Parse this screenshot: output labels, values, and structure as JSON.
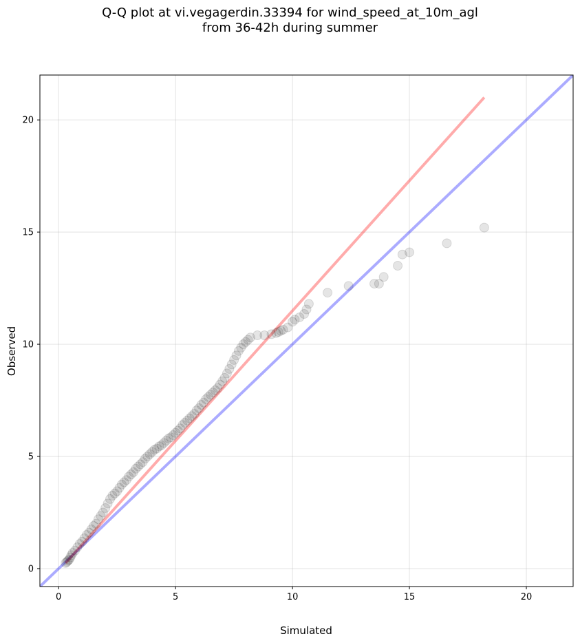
{
  "chart_data": {
    "type": "scatter",
    "title": "Q-Q plot at vi.vegagerdin.33394 for wind_speed_at_10m_agl",
    "subtitle": "from 36-42h during summer",
    "xlabel": "Simulated",
    "ylabel": "Observed",
    "xlim": [
      -0.8,
      22
    ],
    "ylim": [
      -0.8,
      22
    ],
    "xticks": [
      0,
      5,
      10,
      15,
      20
    ],
    "yticks": [
      0,
      5,
      10,
      15,
      20
    ],
    "grid": true,
    "colors": {
      "points": "#000000",
      "fit_line": "#ff0000",
      "identity_line": "#0000ff"
    },
    "fit_line": {
      "x": [
        0.3,
        18.2
      ],
      "y": [
        0.25,
        21.0
      ]
    },
    "identity_line": {
      "x": [
        -0.8,
        22
      ],
      "y": [
        -0.8,
        22
      ]
    },
    "points": {
      "x": [
        0.3,
        0.35,
        0.4,
        0.45,
        0.5,
        0.55,
        0.6,
        0.7,
        0.8,
        0.9,
        1.0,
        1.1,
        1.2,
        1.3,
        1.4,
        1.5,
        1.6,
        1.7,
        1.8,
        1.9,
        2.0,
        2.1,
        2.2,
        2.3,
        2.4,
        2.5,
        2.6,
        2.7,
        2.8,
        2.9,
        3.0,
        3.1,
        3.2,
        3.3,
        3.4,
        3.5,
        3.6,
        3.7,
        3.8,
        3.9,
        4.0,
        4.1,
        4.2,
        4.3,
        4.4,
        4.5,
        4.6,
        4.7,
        4.8,
        4.9,
        5.0,
        5.1,
        5.2,
        5.3,
        5.4,
        5.5,
        5.6,
        5.7,
        5.8,
        5.9,
        6.0,
        6.1,
        6.2,
        6.3,
        6.4,
        6.5,
        6.6,
        6.7,
        6.8,
        6.9,
        7.0,
        7.1,
        7.2,
        7.3,
        7.4,
        7.5,
        7.6,
        7.7,
        7.8,
        7.9,
        8.0,
        8.1,
        8.2,
        8.5,
        8.8,
        9.1,
        9.3,
        9.4,
        9.5,
        9.6,
        9.8,
        10.0,
        10.1,
        10.3,
        10.5,
        10.6,
        10.7,
        11.5,
        12.4,
        13.5,
        13.7,
        13.9,
        14.5,
        14.7,
        15.0,
        16.6,
        18.2
      ],
      "y": [
        0.25,
        0.3,
        0.35,
        0.4,
        0.5,
        0.6,
        0.7,
        0.8,
        0.95,
        1.1,
        1.2,
        1.35,
        1.5,
        1.6,
        1.75,
        1.9,
        2.0,
        2.2,
        2.35,
        2.5,
        2.7,
        2.9,
        3.1,
        3.25,
        3.35,
        3.45,
        3.6,
        3.75,
        3.85,
        3.95,
        4.1,
        4.2,
        4.3,
        4.45,
        4.55,
        4.65,
        4.75,
        4.9,
        5.0,
        5.1,
        5.2,
        5.3,
        5.35,
        5.45,
        5.5,
        5.6,
        5.7,
        5.8,
        5.85,
        5.95,
        6.05,
        6.15,
        6.25,
        6.4,
        6.5,
        6.6,
        6.7,
        6.8,
        6.9,
        7.05,
        7.15,
        7.3,
        7.4,
        7.55,
        7.65,
        7.75,
        7.85,
        7.95,
        8.05,
        8.2,
        8.35,
        8.5,
        8.7,
        8.9,
        9.1,
        9.3,
        9.5,
        9.7,
        9.85,
        10.0,
        10.1,
        10.2,
        10.3,
        10.4,
        10.4,
        10.45,
        10.5,
        10.55,
        10.6,
        10.65,
        10.75,
        11.0,
        11.1,
        11.2,
        11.35,
        11.55,
        11.8,
        12.3,
        12.6,
        12.7,
        12.7,
        13.0,
        13.5,
        14.0,
        14.1,
        14.5,
        15.2
      ]
    }
  }
}
